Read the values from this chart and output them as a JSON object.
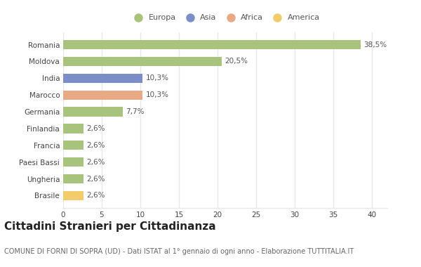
{
  "categories": [
    "Romania",
    "Moldova",
    "India",
    "Marocco",
    "Germania",
    "Finlandia",
    "Francia",
    "Paesi Bassi",
    "Ungheria",
    "Brasile"
  ],
  "values": [
    38.5,
    20.5,
    10.3,
    10.3,
    7.7,
    2.6,
    2.6,
    2.6,
    2.6,
    2.6
  ],
  "labels": [
    "38,5%",
    "20,5%",
    "10,3%",
    "10,3%",
    "7,7%",
    "2,6%",
    "2,6%",
    "2,6%",
    "2,6%",
    "2,6%"
  ],
  "colors": [
    "#a8c47c",
    "#a8c47c",
    "#7b8ec8",
    "#e8aa85",
    "#a8c47c",
    "#a8c47c",
    "#a8c47c",
    "#a8c47c",
    "#a8c47c",
    "#f2cc6b"
  ],
  "legend_labels": [
    "Europa",
    "Asia",
    "Africa",
    "America"
  ],
  "legend_colors": [
    "#a8c47c",
    "#7b8ec8",
    "#e8aa85",
    "#f2cc6b"
  ],
  "xlim": [
    0,
    42
  ],
  "xticks": [
    0,
    5,
    10,
    15,
    20,
    25,
    30,
    35,
    40
  ],
  "title": "Cittadini Stranieri per Cittadinanza",
  "subtitle": "COMUNE DI FORNI DI SOPRA (UD) - Dati ISTAT al 1° gennaio di ogni anno - Elaborazione TUTTITALIA.IT",
  "bg_color": "#ffffff",
  "grid_color": "#e8e8e8",
  "bar_height": 0.55,
  "title_fontsize": 11,
  "subtitle_fontsize": 7,
  "label_fontsize": 7.5,
  "tick_fontsize": 7.5,
  "legend_fontsize": 8
}
